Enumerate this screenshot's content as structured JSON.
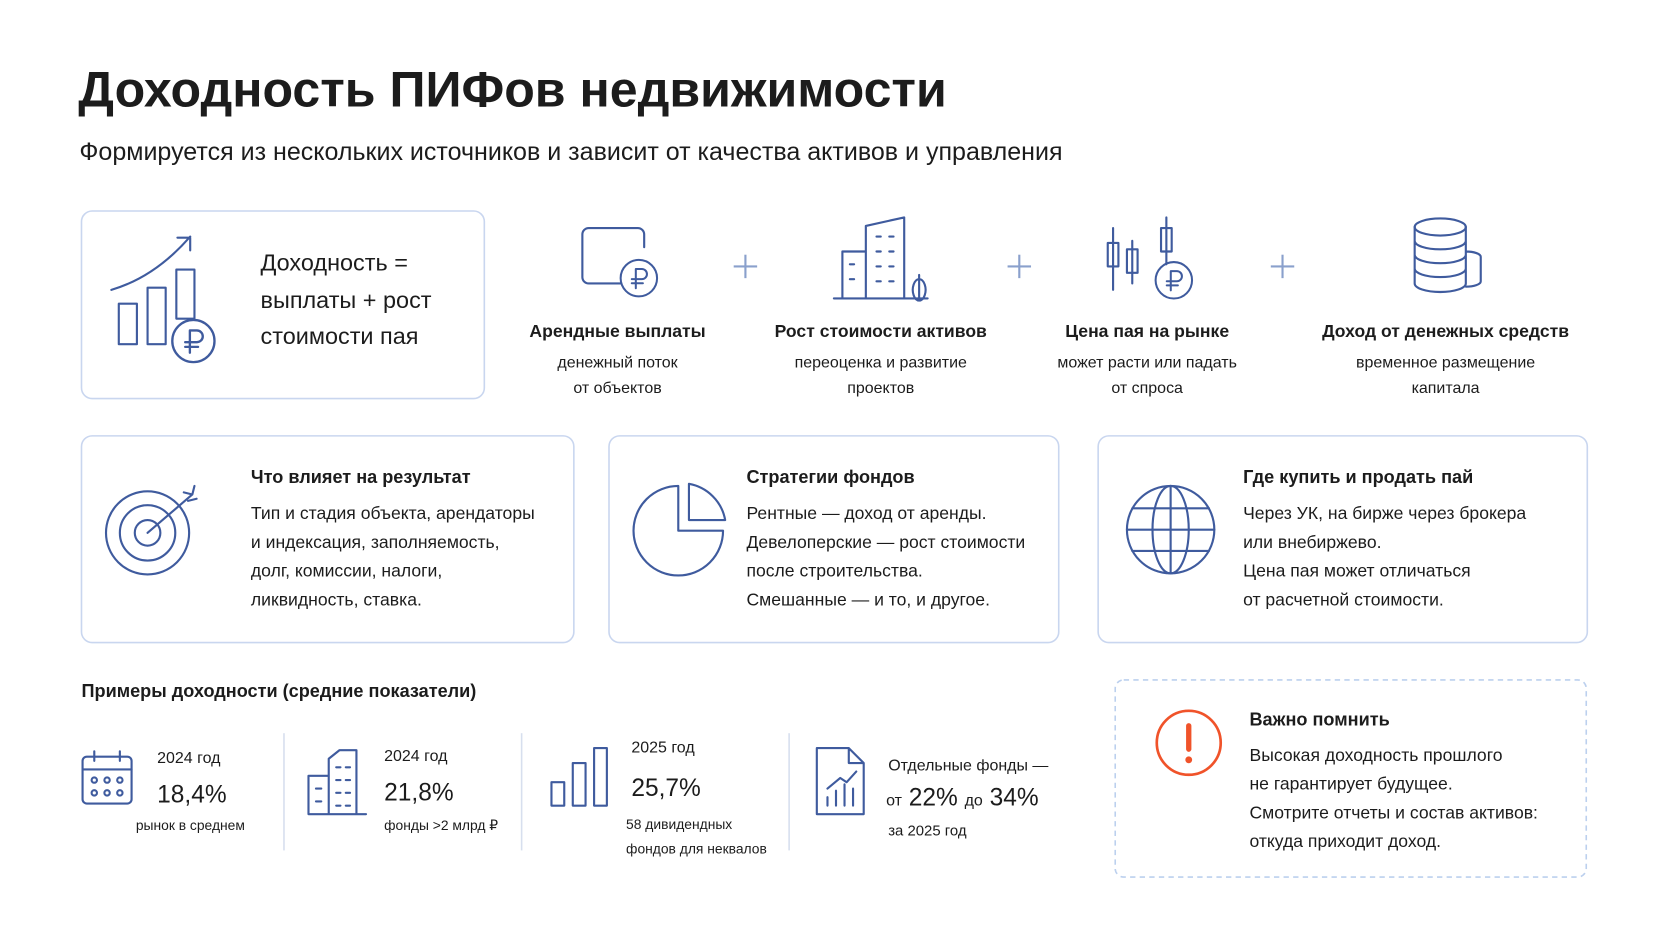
{
  "header": {
    "title": "Доходность ПИФов недвижимости",
    "subtitle": "Формируется из нескольких источников и зависит от качества активов и управления"
  },
  "formula": {
    "lines": [
      "Доходность =",
      "выплаты + рост",
      "стоимости пая"
    ]
  },
  "sources": [
    {
      "title": "Арендные выплаты",
      "lines": [
        "денежный поток",
        "от объектов"
      ]
    },
    {
      "title": "Рост стоимости активов",
      "lines": [
        "переоценка и развитие",
        "проектов"
      ]
    },
    {
      "title": "Цена пая на рынке",
      "lines": [
        "может расти или падать",
        "от спроса"
      ]
    },
    {
      "title": "Доход от денежных средств",
      "lines": [
        "временное размещение",
        "капитала"
      ]
    }
  ],
  "cards": [
    {
      "title": "Что влияет на результат",
      "lines": [
        "Тип и стадия объекта, арендаторы",
        "и индексация, заполняемость,",
        "долг, комиссии, налоги,",
        "ликвидность, ставка."
      ]
    },
    {
      "title": "Стратегии фондов",
      "lines": [
        "Рентные — доход от аренды.",
        "Девелоперские — рост стоимости",
        "после строительства.",
        "Смешанные — и то, и другое."
      ]
    },
    {
      "title": "Где купить и продать пай",
      "lines": [
        "Через УК, на бирже через брокера",
        "или внебиржево.",
        "Цена пая может отличаться",
        "от расчетной стоимости."
      ]
    }
  ],
  "examples": {
    "title": "Примеры доходности (средние показатели)",
    "items": [
      {
        "period": "2024 год",
        "value": "18,4%",
        "notes": [
          "рынок в среднем"
        ]
      },
      {
        "period": "2024 год",
        "value": "21,8%",
        "notes": [
          "фонды >2 млрд ₽"
        ]
      },
      {
        "period": "2025 год",
        "value": "25,7%",
        "notes": [
          "58 дивидендных",
          "фондов для неквалов"
        ]
      },
      {
        "lead": "Отдельные фонды —",
        "from": "от",
        "low": "22%",
        "to": "до",
        "high": "34%",
        "period": "за 2025 год"
      }
    ]
  },
  "note": {
    "title": "Важно помнить",
    "lines": [
      "Высокая доходность прошлого",
      "не гарантирует будущее.",
      "Смотрите отчеты и состав активов:",
      "откуда приходит доход."
    ]
  }
}
